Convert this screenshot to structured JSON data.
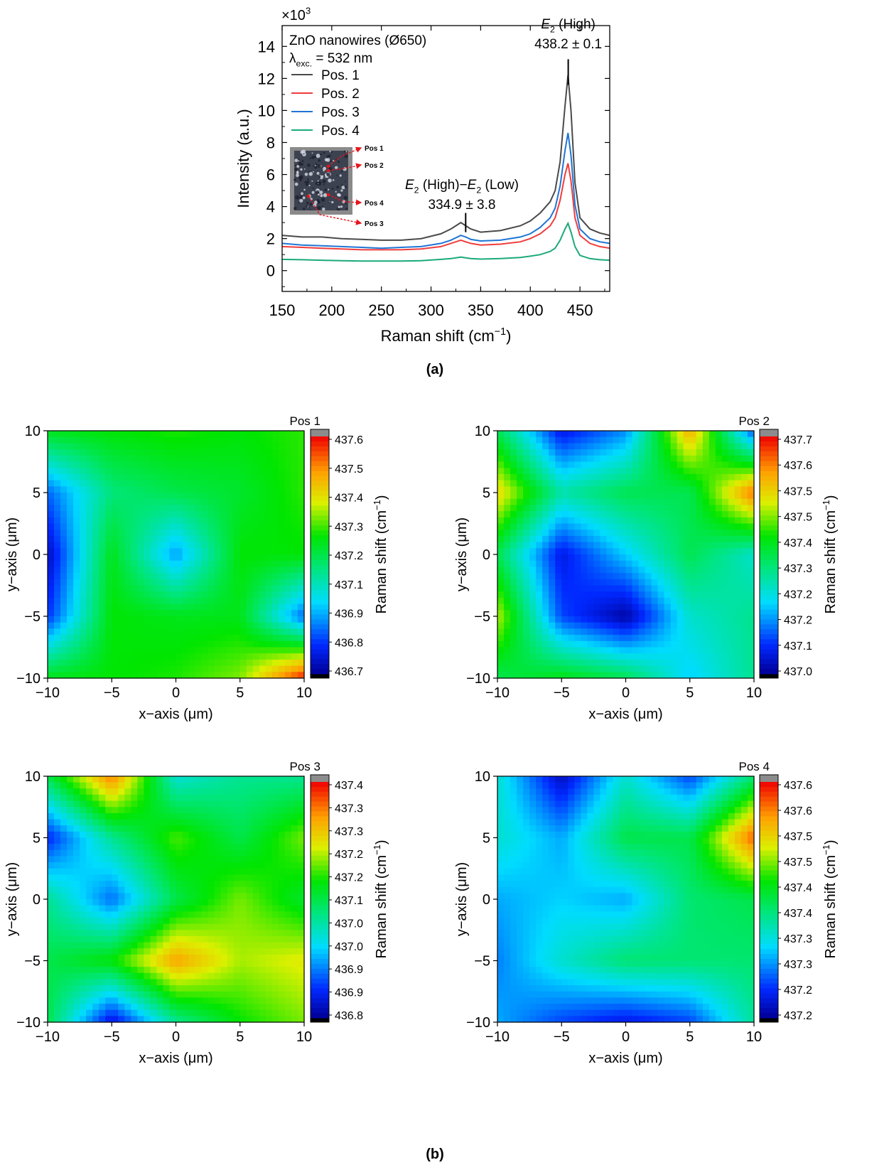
{
  "panel_labels": {
    "a": "(a)",
    "b": "(b)"
  },
  "spectrum": {
    "multiplier": "×10",
    "exponent": "3",
    "legend_title": "ZnO nanowires (Ø650)",
    "legend_lambda": "λ",
    "legend_lambda_sub": "exc.",
    "legend_lambda_value": "= 532 nm",
    "inset_labels": [
      "Pos 1",
      "Pos 2",
      "Pos 4",
      "Pos 3"
    ],
    "annotation_high": {
      "name": "E",
      "sub": "2",
      "suffix": " (High)",
      "value": "438.2 ± 0.1"
    },
    "annotation_diff": {
      "name1": "E",
      "sub1": "2",
      "mid": " (High)−",
      "name2": "E",
      "sub2": "2",
      "suffix": " (Low)",
      "value": "334.9 ± 3.8"
    }
  },
  "chart_data": [
    {
      "type": "line",
      "title": "",
      "xlabel": "Raman shift (cm",
      "xlabel_sup": "−1",
      "xlabel_end": ")",
      "ylabel": "Intensity (a.u.)",
      "xlim": [
        150,
        480
      ],
      "ylim": [
        -1.3,
        15.3
      ],
      "xticks": [
        150,
        200,
        250,
        300,
        350,
        400,
        450
      ],
      "yticks": [
        0,
        2,
        4,
        6,
        8,
        10,
        12,
        14
      ],
      "x": [
        150,
        170,
        190,
        210,
        230,
        250,
        270,
        290,
        310,
        320,
        330,
        335,
        340,
        350,
        370,
        390,
        400,
        410,
        420,
        425,
        430,
        435,
        438,
        441,
        445,
        450,
        460,
        470,
        480
      ],
      "series": [
        {
          "name": "Pos. 1",
          "color": "#4a4a4a",
          "values": [
            2.2,
            2.1,
            2.1,
            2.0,
            1.95,
            1.9,
            1.9,
            2.0,
            2.3,
            2.6,
            3.0,
            2.8,
            2.6,
            2.4,
            2.5,
            2.8,
            3.1,
            3.6,
            4.3,
            5.0,
            6.8,
            10.3,
            12.2,
            10.0,
            5.5,
            3.3,
            2.6,
            2.35,
            2.2
          ]
        },
        {
          "name": "Pos. 2",
          "color": "#f03c3c",
          "values": [
            1.5,
            1.45,
            1.4,
            1.35,
            1.3,
            1.3,
            1.3,
            1.35,
            1.5,
            1.7,
            1.9,
            1.8,
            1.7,
            1.6,
            1.65,
            1.8,
            2.0,
            2.3,
            2.8,
            3.3,
            4.4,
            6.0,
            6.7,
            5.6,
            3.3,
            2.2,
            1.7,
            1.5,
            1.4
          ]
        },
        {
          "name": "Pos. 3",
          "color": "#1f74d4",
          "values": [
            1.7,
            1.6,
            1.55,
            1.5,
            1.45,
            1.4,
            1.45,
            1.5,
            1.7,
            1.9,
            2.2,
            2.1,
            1.95,
            1.85,
            1.9,
            2.1,
            2.3,
            2.7,
            3.3,
            3.9,
            5.3,
            7.5,
            8.6,
            7.2,
            4.1,
            2.6,
            2.0,
            1.8,
            1.7
          ]
        },
        {
          "name": "Pos. 4",
          "color": "#1aaa78",
          "values": [
            0.7,
            0.68,
            0.65,
            0.62,
            0.6,
            0.6,
            0.6,
            0.62,
            0.7,
            0.75,
            0.85,
            0.8,
            0.75,
            0.72,
            0.75,
            0.82,
            0.9,
            1.0,
            1.2,
            1.4,
            1.9,
            2.6,
            2.95,
            2.4,
            1.5,
            0.95,
            0.75,
            0.68,
            0.65
          ]
        }
      ]
    },
    {
      "type": "heatmap",
      "title": "Pos 1",
      "xlabel": "x−axis (",
      "xlabel_mu": "μm",
      "ylabel": "y−axis (",
      "colorbar_label": "Raman shift (cm",
      "xlim": [
        -10,
        10
      ],
      "ylim": [
        -10,
        10
      ],
      "xticks": [
        -10,
        -5,
        0,
        5,
        10
      ],
      "yticks": [
        -10,
        -5,
        0,
        5,
        10
      ],
      "colorbar_range": [
        436.68,
        437.62
      ],
      "colorbar_ticks": [
        "437.6",
        "437.5",
        "437.4",
        "437.3",
        "437.2",
        "437.1",
        "436.9",
        "436.8",
        "436.7"
      ],
      "grid_x": [
        -10,
        -5,
        0,
        5,
        10
      ],
      "grid_y": [
        10,
        5,
        0,
        -5,
        -10
      ],
      "z": [
        [
          437.2,
          437.22,
          437.24,
          437.22,
          437.25
        ],
        [
          436.85,
          437.1,
          437.15,
          437.18,
          437.25
        ],
        [
          436.72,
          437.2,
          436.9,
          437.22,
          437.22
        ],
        [
          436.8,
          437.22,
          437.2,
          437.2,
          436.85
        ],
        [
          437.2,
          437.22,
          437.24,
          437.3,
          437.6
        ]
      ]
    },
    {
      "type": "heatmap",
      "title": "Pos 2",
      "xlabel": "x−axis (",
      "xlabel_mu": "μm",
      "ylabel": "y−axis (",
      "colorbar_label": "Raman shift (cm",
      "xlim": [
        -10,
        10
      ],
      "ylim": [
        -10,
        10
      ],
      "xticks": [
        -10,
        -5,
        0,
        5,
        10
      ],
      "yticks": [
        -10,
        -5,
        0,
        5,
        10
      ],
      "colorbar_range": [
        436.99,
        437.72
      ],
      "colorbar_ticks": [
        "437.7",
        "437.6",
        "437.5",
        "437.5",
        "437.4",
        "437.3",
        "437.2",
        "437.2",
        "437.1",
        "437.0"
      ],
      "grid_x": [
        -10,
        -5,
        0,
        5,
        10
      ],
      "grid_y": [
        10,
        5,
        0,
        -5,
        -10
      ],
      "z": [
        [
          437.35,
          437.05,
          437.15,
          437.6,
          437.1
        ],
        [
          437.55,
          437.28,
          437.35,
          437.35,
          437.65
        ],
        [
          437.35,
          437.05,
          437.2,
          437.35,
          437.25
        ],
        [
          437.5,
          437.1,
          437.0,
          437.25,
          437.3
        ],
        [
          437.35,
          437.4,
          437.35,
          437.2,
          437.3
        ]
      ]
    },
    {
      "type": "heatmap",
      "title": "Pos 3",
      "xlabel": "x−axis (",
      "xlabel_mu": "μm",
      "ylabel": "y−axis (",
      "colorbar_label": "Raman shift (cm",
      "xlim": [
        -10,
        10
      ],
      "ylim": [
        -10,
        10
      ],
      "xticks": [
        -10,
        -5,
        0,
        5,
        10
      ],
      "yticks": [
        -10,
        -5,
        0,
        5,
        10
      ],
      "colorbar_range": [
        436.78,
        437.42
      ],
      "colorbar_ticks": [
        "437.4",
        "437.3",
        "437.3",
        "437.2",
        "437.2",
        "437.1",
        "437.0",
        "437.0",
        "436.9",
        "436.9",
        "436.8"
      ],
      "grid_x": [
        -10,
        -5,
        0,
        5,
        10
      ],
      "grid_y": [
        10,
        5,
        0,
        -5,
        -10
      ],
      "z": [
        [
          437.1,
          437.35,
          437.0,
          437.05,
          437.05
        ],
        [
          436.85,
          437.05,
          437.18,
          437.1,
          437.2
        ],
        [
          437.05,
          436.9,
          437.1,
          437.2,
          437.12
        ],
        [
          437.1,
          437.15,
          437.32,
          437.22,
          437.25
        ],
        [
          437.1,
          436.82,
          437.05,
          437.15,
          437.2
        ]
      ]
    },
    {
      "type": "heatmap",
      "title": "Pos 4",
      "xlabel": "x−axis (",
      "xlabel_mu": "μm",
      "ylabel": "y−axis (",
      "colorbar_label": "Raman shift (cm",
      "xlim": [
        -10,
        10
      ],
      "ylim": [
        -10,
        10
      ],
      "xticks": [
        -10,
        -5,
        0,
        5,
        10
      ],
      "yticks": [
        -10,
        -5,
        0,
        5,
        10
      ],
      "colorbar_range": [
        437.18,
        437.66
      ],
      "colorbar_ticks": [
        "437.6",
        "437.6",
        "437.5",
        "437.5",
        "437.4",
        "437.4",
        "437.3",
        "437.3",
        "437.2",
        "437.2"
      ],
      "grid_x": [
        -10,
        -5,
        0,
        5,
        10
      ],
      "grid_y": [
        10,
        5,
        0,
        -5,
        -10
      ],
      "z": [
        [
          437.35,
          437.2,
          437.35,
          437.25,
          437.4
        ],
        [
          437.35,
          437.3,
          437.42,
          437.42,
          437.62
        ],
        [
          437.3,
          437.32,
          437.3,
          437.4,
          437.42
        ],
        [
          437.28,
          437.35,
          437.4,
          437.4,
          437.4
        ],
        [
          437.3,
          437.25,
          437.22,
          437.25,
          437.38
        ]
      ]
    }
  ]
}
